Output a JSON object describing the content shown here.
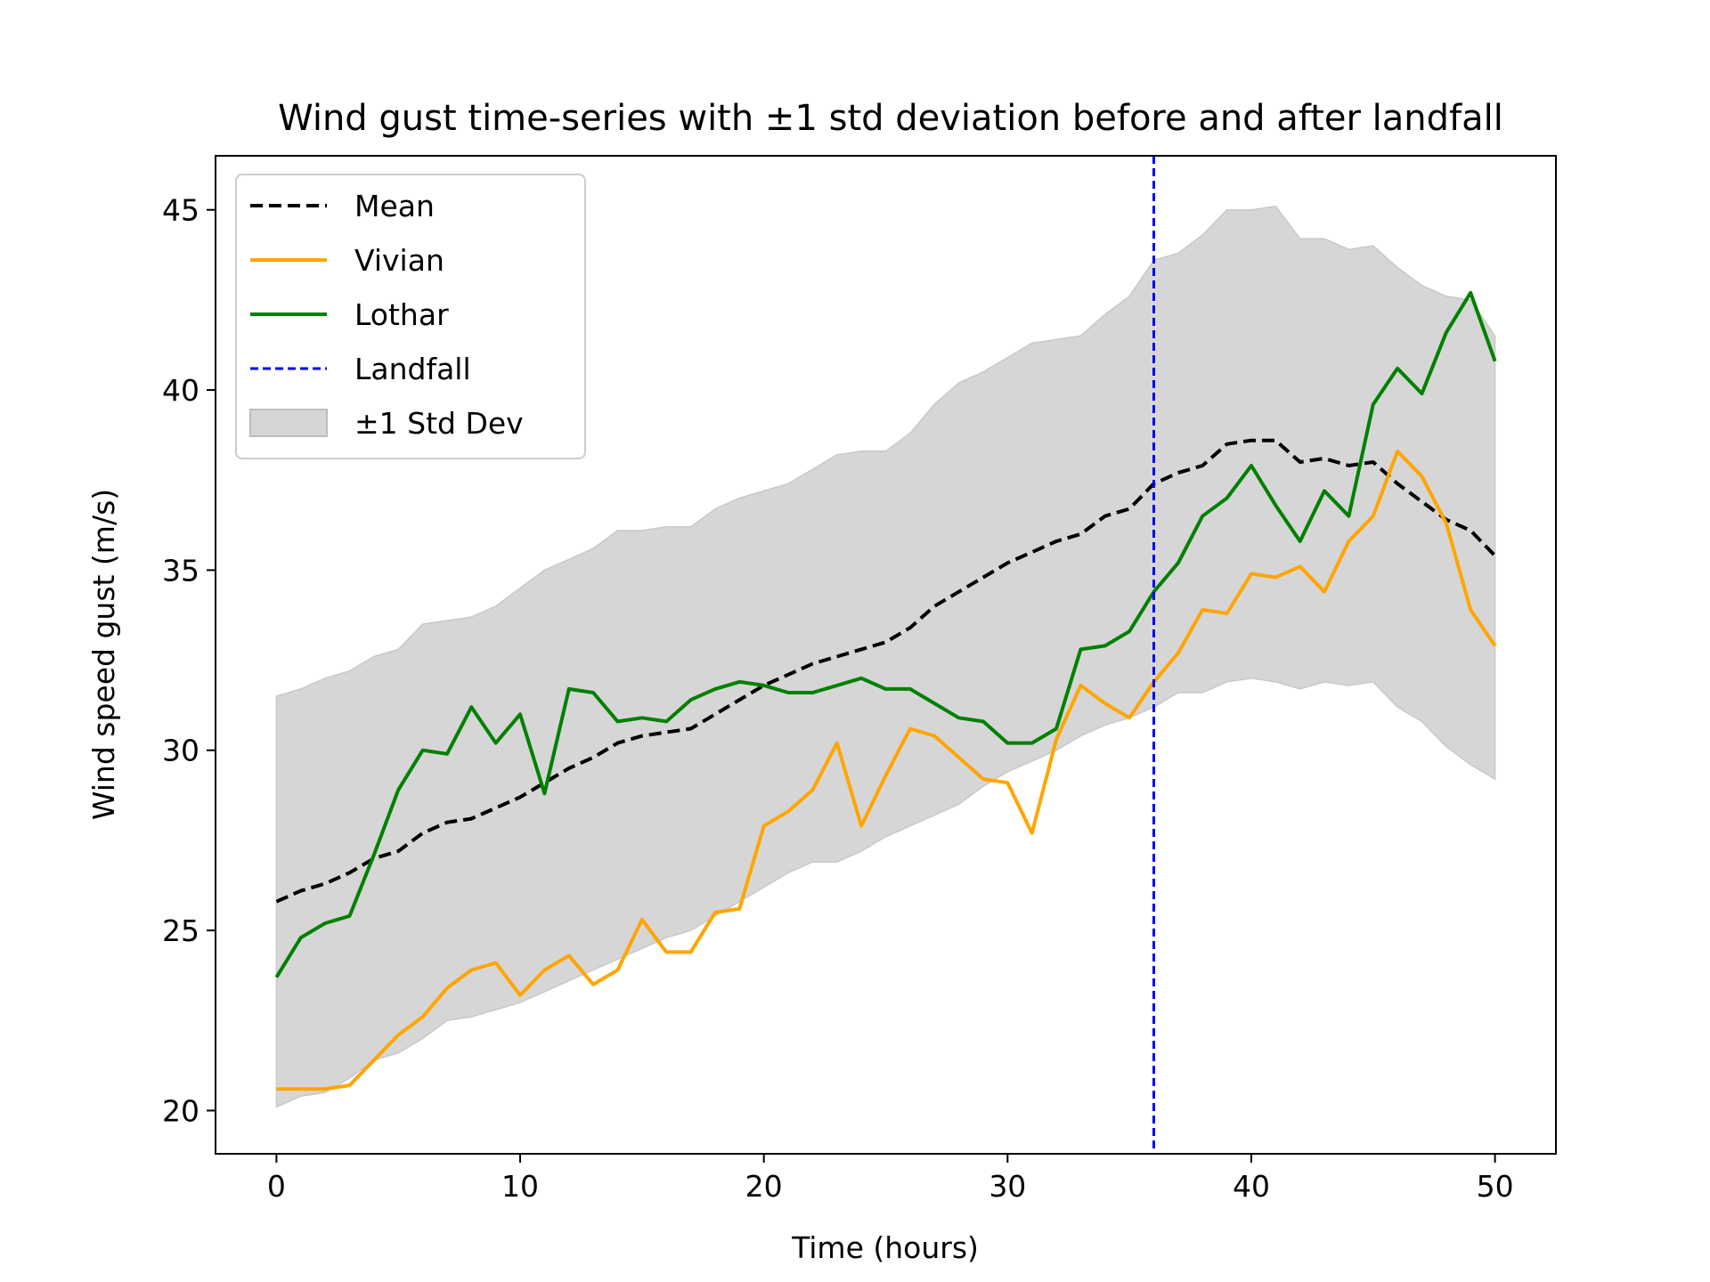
{
  "chart_data": {
    "type": "line",
    "title": "Wind gust time-series with ±1 std deviation before and after landfall",
    "xlabel": "Time (hours)",
    "ylabel": "Wind speed gust (m/s)",
    "xlim": [
      -2.5,
      52.5
    ],
    "ylim": [
      18.8,
      46.5
    ],
    "xticks": [
      0,
      10,
      20,
      30,
      40,
      50
    ],
    "yticks": [
      20,
      25,
      30,
      35,
      40,
      45
    ],
    "grid": false,
    "legend_position": "upper-left",
    "landfall_x": 36,
    "x": [
      0,
      1,
      2,
      3,
      4,
      5,
      6,
      7,
      8,
      9,
      10,
      11,
      12,
      13,
      14,
      15,
      16,
      17,
      18,
      19,
      20,
      21,
      22,
      23,
      24,
      25,
      26,
      27,
      28,
      29,
      30,
      31,
      32,
      33,
      34,
      35,
      36,
      37,
      38,
      39,
      40,
      41,
      42,
      43,
      44,
      45,
      46,
      47,
      48,
      49,
      50
    ],
    "series": [
      {
        "name": "Mean",
        "color": "#000000",
        "style": "dashed",
        "values": [
          25.8,
          26.1,
          26.3,
          26.6,
          27.0,
          27.2,
          27.7,
          28.0,
          28.1,
          28.4,
          28.7,
          29.1,
          29.5,
          29.8,
          30.2,
          30.4,
          30.5,
          30.6,
          31.0,
          31.4,
          31.8,
          32.1,
          32.4,
          32.6,
          32.8,
          33.0,
          33.4,
          34.0,
          34.4,
          34.8,
          35.2,
          35.5,
          35.8,
          36.0,
          36.5,
          36.7,
          37.4,
          37.7,
          37.9,
          38.5,
          38.6,
          38.6,
          38.0,
          38.1,
          37.9,
          38.0,
          37.4,
          36.9,
          36.4,
          36.1,
          35.4
        ]
      },
      {
        "name": "Vivian",
        "color": "#ffa500",
        "style": "solid",
        "values": [
          20.6,
          20.6,
          20.6,
          20.7,
          21.4,
          22.1,
          22.6,
          23.4,
          23.9,
          24.1,
          23.2,
          23.9,
          24.3,
          23.5,
          23.9,
          25.3,
          24.4,
          24.4,
          25.5,
          25.6,
          27.9,
          28.3,
          28.9,
          30.2,
          27.9,
          29.3,
          30.6,
          30.4,
          29.8,
          29.2,
          29.1,
          27.7,
          30.3,
          31.8,
          31.3,
          30.9,
          31.9,
          32.7,
          33.9,
          33.8,
          34.9,
          34.8,
          35.1,
          34.4,
          35.8,
          36.5,
          38.3,
          37.6,
          36.3,
          33.9,
          32.9
        ]
      },
      {
        "name": "Lothar",
        "color": "#008000",
        "style": "solid",
        "values": [
          23.7,
          24.8,
          25.2,
          25.4,
          27.1,
          28.9,
          30.0,
          29.9,
          31.2,
          30.2,
          31.0,
          28.8,
          31.7,
          31.6,
          30.8,
          30.9,
          30.8,
          31.4,
          31.7,
          31.9,
          31.8,
          31.6,
          31.6,
          31.8,
          32.0,
          31.7,
          31.7,
          31.3,
          30.9,
          30.8,
          30.2,
          30.2,
          30.6,
          32.8,
          32.9,
          33.3,
          34.4,
          35.2,
          36.5,
          37.0,
          37.9,
          36.8,
          35.8,
          37.2,
          36.5,
          39.6,
          40.6,
          39.9,
          41.6,
          42.7,
          40.8
        ]
      }
    ],
    "band": {
      "name": "±1 Std Dev",
      "color": "#d6d6d6",
      "upper": [
        31.5,
        31.7,
        32.0,
        32.2,
        32.6,
        32.8,
        33.5,
        33.6,
        33.7,
        34.0,
        34.5,
        35.0,
        35.3,
        35.6,
        36.1,
        36.1,
        36.2,
        36.2,
        36.7,
        37.0,
        37.2,
        37.4,
        37.8,
        38.2,
        38.3,
        38.3,
        38.8,
        39.6,
        40.2,
        40.5,
        40.9,
        41.3,
        41.4,
        41.5,
        42.1,
        42.6,
        43.6,
        43.8,
        44.3,
        45.0,
        45.0,
        45.1,
        44.2,
        44.2,
        43.9,
        44.0,
        43.4,
        42.9,
        42.6,
        42.5,
        41.5
      ],
      "lower": [
        20.1,
        20.4,
        20.5,
        20.9,
        21.4,
        21.6,
        22.0,
        22.5,
        22.6,
        22.8,
        23.0,
        23.3,
        23.6,
        23.9,
        24.2,
        24.5,
        24.8,
        25.0,
        25.4,
        25.8,
        26.2,
        26.6,
        26.9,
        26.9,
        27.2,
        27.6,
        27.9,
        28.2,
        28.5,
        29.0,
        29.4,
        29.7,
        30.0,
        30.4,
        30.7,
        30.9,
        31.2,
        31.6,
        31.6,
        31.9,
        32.0,
        31.9,
        31.7,
        31.9,
        31.8,
        31.9,
        31.2,
        30.8,
        30.1,
        29.6,
        29.2
      ]
    },
    "landfall_style": {
      "name": "Landfall",
      "color": "#0000ff",
      "style": "dashed"
    }
  }
}
